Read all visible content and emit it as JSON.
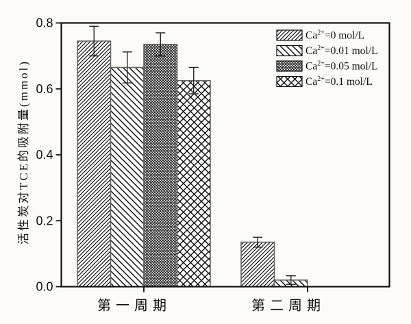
{
  "figure": {
    "background": "#fcfbf9",
    "ink_color": "#111111",
    "bar_edge_color": "#666666"
  },
  "chart_data": {
    "type": "bar",
    "title": "",
    "xlabel": "",
    "ylabel": "活性炭对TCE的吸附量(mmol)",
    "ylim": [
      0,
      0.8
    ],
    "yticks": [
      "0.0",
      "0.2",
      "0.4",
      "0.6",
      "0.8"
    ],
    "ytick_values": [
      0.0,
      0.2,
      0.4,
      0.6,
      0.8
    ],
    "grid": false,
    "legend_position": "top-right",
    "categories": [
      "第一周期",
      "第二周期"
    ],
    "series": [
      {
        "name": "Ca2+=0 mol/L",
        "label_base": "Ca",
        "label_sup": "2+",
        "label_rest": "=0 mol/L",
        "hatch": "diagonal-forward",
        "values": [
          0.745,
          0.135
        ],
        "errors": [
          0.045,
          0.015
        ]
      },
      {
        "name": "Ca2+=0.01 mol/L",
        "label_base": "Ca",
        "label_sup": "2+",
        "label_rest": "=0.01 mol/L",
        "hatch": "diagonal-backward",
        "values": [
          0.665,
          0.02
        ],
        "errors": [
          0.047,
          0.013
        ]
      },
      {
        "name": "Ca2+=0.05 mol/L",
        "label_base": "Ca",
        "label_sup": "2+",
        "label_rest": "=0.05 mol/L",
        "hatch": "dense-crosshatch",
        "values": [
          0.735,
          0
        ],
        "errors": [
          0.035,
          0
        ]
      },
      {
        "name": "Ca2+=0.1 mol/L",
        "label_base": "Ca",
        "label_sup": "2+",
        "label_rest": "=0.1 mol/L",
        "hatch": "large-crosshatch",
        "values": [
          0.625,
          0
        ],
        "errors": [
          0.04,
          0
        ]
      }
    ]
  }
}
